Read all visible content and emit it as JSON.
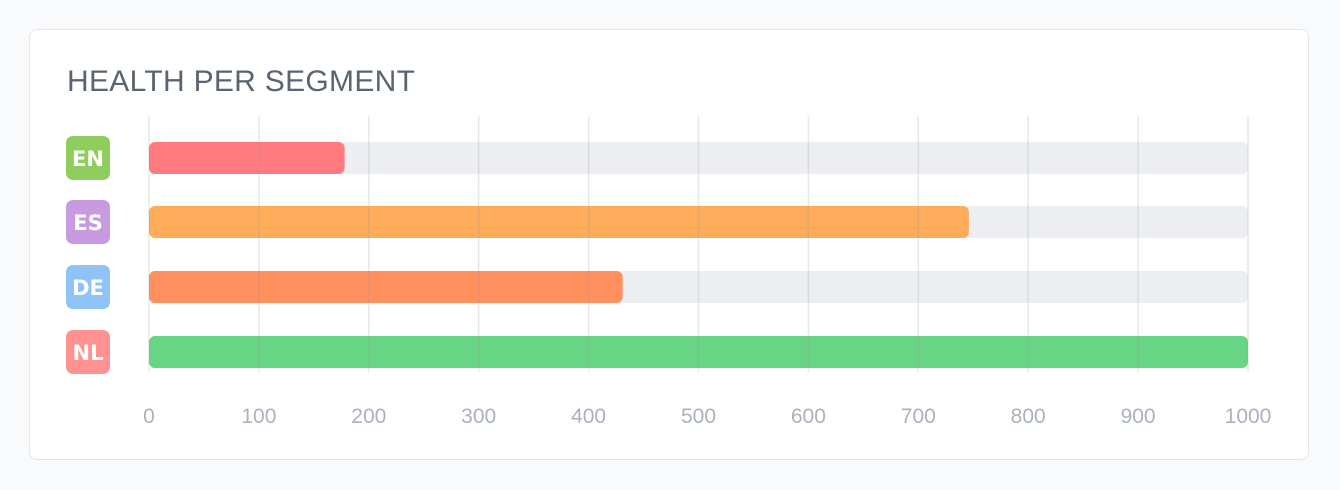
{
  "card": {
    "title": "HEALTH PER SEGMENT"
  },
  "chart_data": {
    "type": "bar",
    "orientation": "horizontal",
    "title": "HEALTH PER SEGMENT",
    "categories": [
      "EN",
      "ES",
      "DE",
      "NL"
    ],
    "values": [
      178,
      746,
      431,
      1000
    ],
    "max": 1000,
    "xlim": [
      0,
      1000
    ],
    "xticks": [
      "0",
      "100",
      "200",
      "300",
      "400",
      "500",
      "600",
      "700",
      "800",
      "900",
      "1000"
    ],
    "grid": true,
    "colors": {
      "bars": [
        "#ff7b7f",
        "#ffab5a",
        "#ff905e",
        "#67d583"
      ],
      "badges": [
        "#8fcd5d",
        "#c89be0",
        "#8fc3f7",
        "#ff9190"
      ],
      "track": "#edeef2",
      "grid": "#e2e4e8",
      "tick_text": "#a9b2bd"
    }
  }
}
